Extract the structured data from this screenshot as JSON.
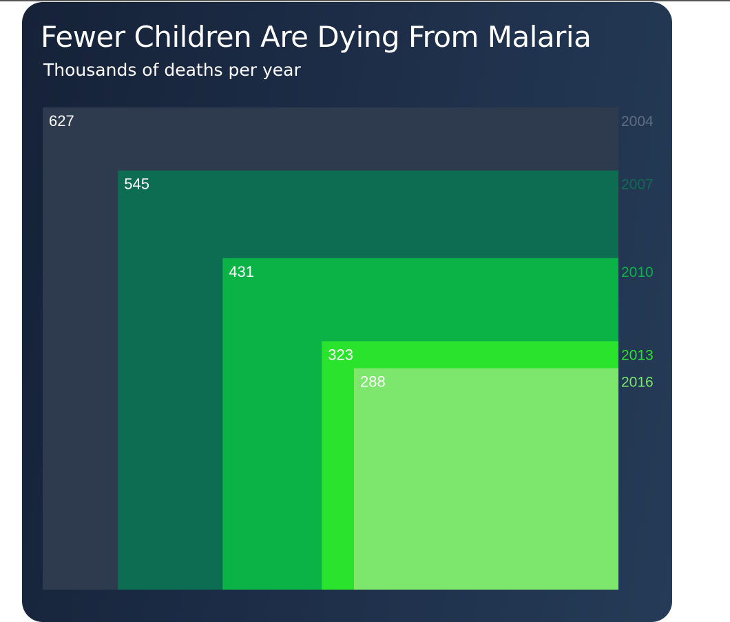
{
  "chart_data": {
    "type": "area",
    "title": "Fewer Children Are Dying From Malaria",
    "subtitle": "Thousands of deaths per year",
    "categories": [
      "2004",
      "2007",
      "2010",
      "2013",
      "2016"
    ],
    "values": [
      627,
      545,
      431,
      323,
      288
    ],
    "value_labels": [
      "627",
      "545",
      "431",
      "323",
      "288"
    ],
    "colors": [
      "#2e3a4e",
      "#0d6d53",
      "#0bb346",
      "#2ae32d",
      "#7ce66d"
    ],
    "year_label_colors": [
      "#5f6d82",
      "#0d6d53",
      "#0bb346",
      "#2ae32d",
      "#7ce66d"
    ],
    "grid": false
  }
}
